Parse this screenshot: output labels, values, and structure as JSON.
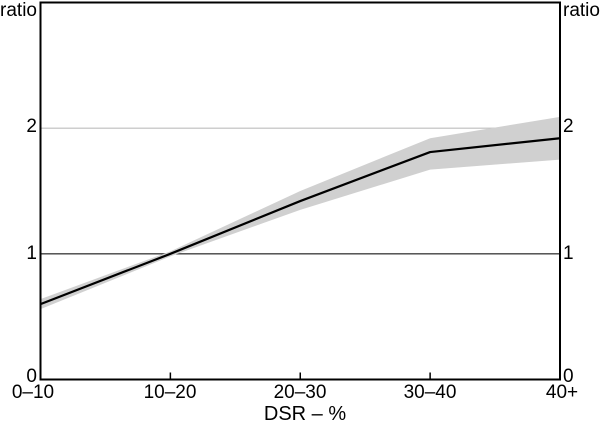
{
  "chart_data": {
    "type": "line",
    "title": "",
    "xlabel": "DSR – %",
    "ylabel_left": "ratio",
    "ylabel_right": "ratio",
    "categories": [
      "0–10",
      "10–20",
      "20–30",
      "30–40",
      "40+"
    ],
    "series": [
      {
        "name": "ratio",
        "values": [
          0.6,
          1.0,
          1.42,
          1.81,
          1.92
        ]
      }
    ],
    "band": {
      "name": "confidence-band",
      "upper": [
        0.64,
        1.02,
        1.5,
        1.92,
        2.09
      ],
      "lower": [
        0.56,
        0.98,
        1.35,
        1.67,
        1.75
      ]
    },
    "ylim": [
      0,
      3
    ],
    "yticks": [
      0,
      1,
      2
    ],
    "gridlines": [
      {
        "y": 2,
        "color": "#bdbdbd",
        "width": 1.2
      },
      {
        "y": 1,
        "color": "#404040",
        "width": 1.4
      }
    ],
    "legend_position": "none",
    "grid": "horizontal-partial",
    "colors": {
      "line": "#000000",
      "band": "#d0d0d0",
      "frame": "#000000",
      "text": "#000000",
      "background": "#ffffff"
    }
  }
}
